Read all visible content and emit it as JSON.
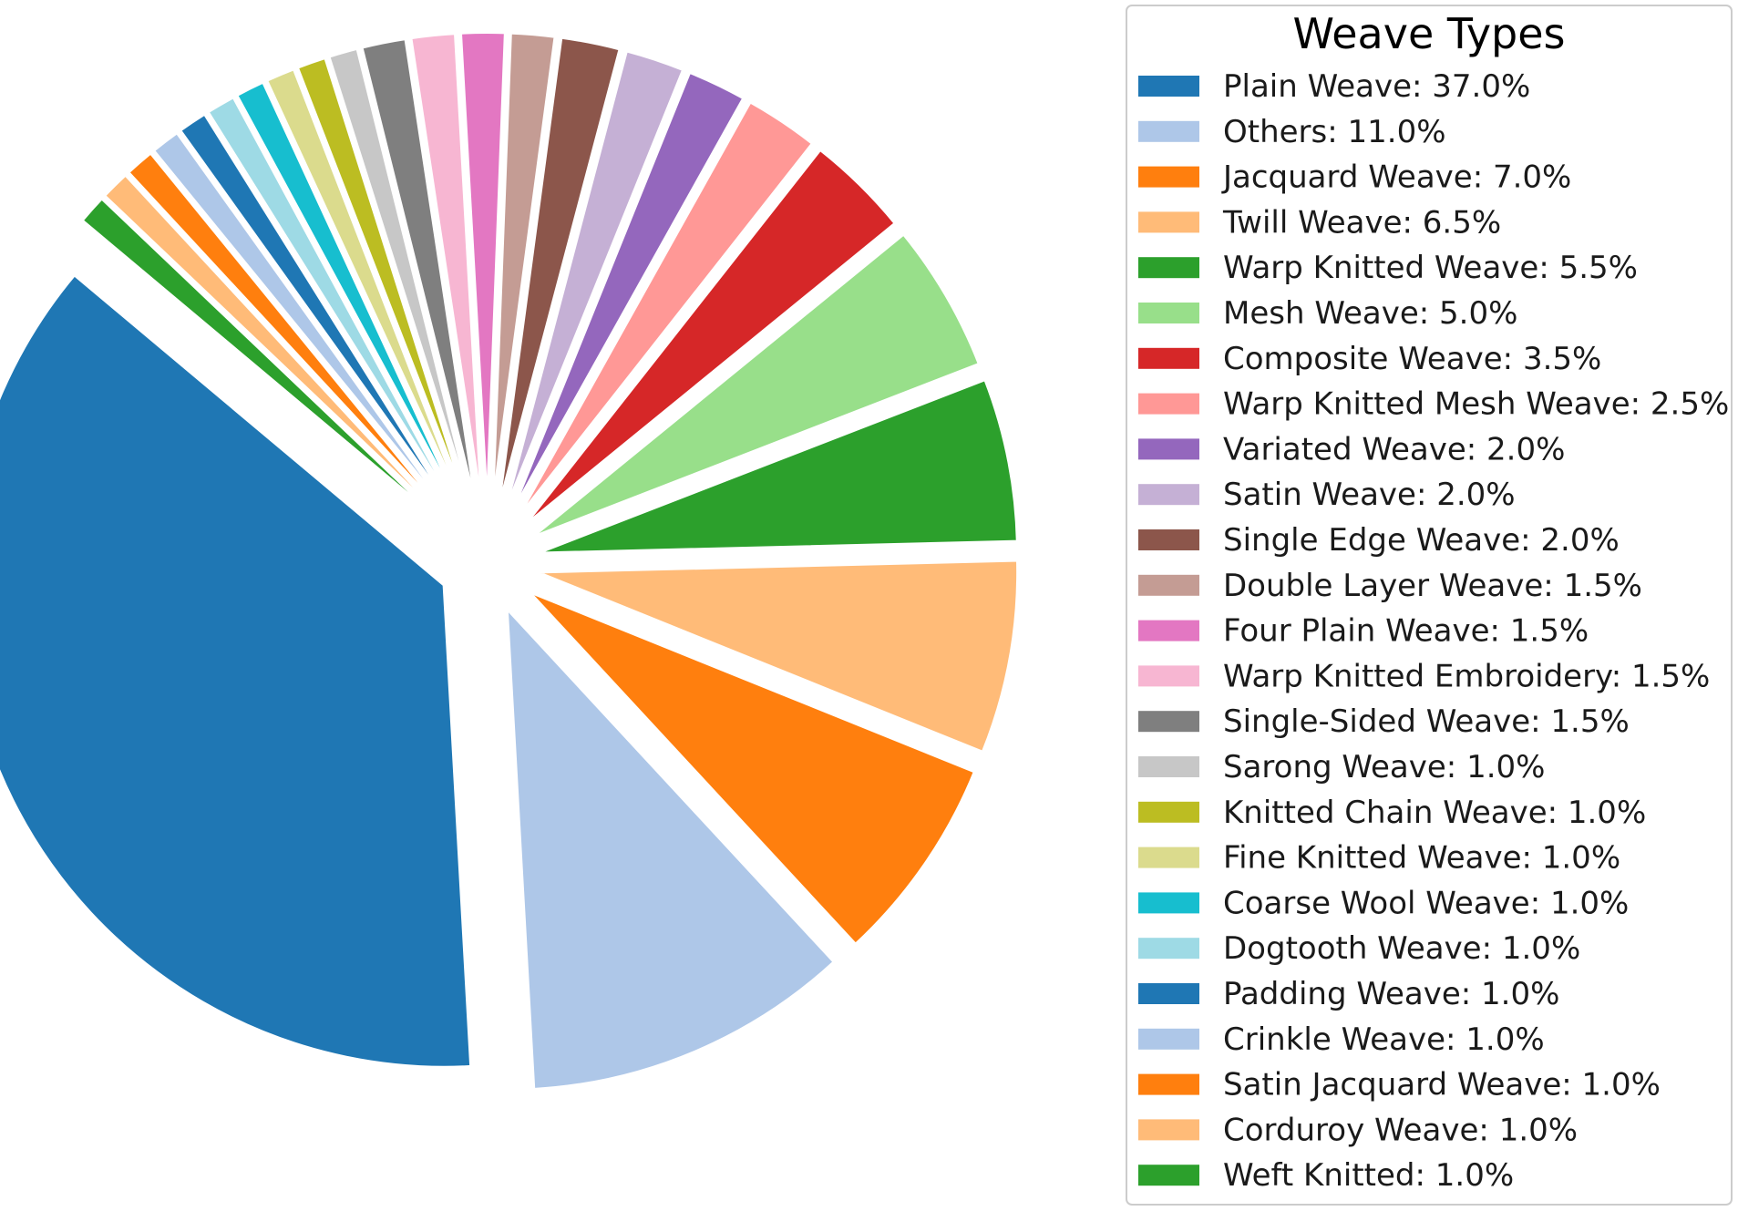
{
  "chart_data": {
    "type": "pie",
    "legend_title": "Weave Types",
    "legend_position": "right",
    "start_angle_deg": 140,
    "direction": "counterclockwise",
    "slices": [
      {
        "label": "Plain Weave: 37.0%",
        "value": 37.0,
        "color": "#1f77b4",
        "explode": 0.1
      },
      {
        "label": "Others: 11.0%",
        "value": 11.0,
        "color": "#aec7e8",
        "explode": 0.1
      },
      {
        "label": "Jacquard Weave: 7.0%",
        "value": 7.0,
        "color": "#ff7f0e",
        "explode": 0.1
      },
      {
        "label": "Twill Weave: 6.5%",
        "value": 6.5,
        "color": "#ffbb78",
        "explode": 0.1
      },
      {
        "label": "Warp Knitted Weave: 5.5%",
        "value": 5.5,
        "color": "#2ca02c",
        "explode": 0.1
      },
      {
        "label": "Mesh Weave: 5.0%",
        "value": 5.0,
        "color": "#98df8a",
        "explode": 0.1
      },
      {
        "label": "Composite Weave: 3.5%",
        "value": 3.5,
        "color": "#d62728",
        "explode": 0.1
      },
      {
        "label": "Warp Knitted Mesh Weave: 2.5%",
        "value": 2.5,
        "color": "#ff9896",
        "explode": 0.1
      },
      {
        "label": "Variated Weave: 2.0%",
        "value": 2.0,
        "color": "#9467bd",
        "explode": 0.1
      },
      {
        "label": "Satin Weave: 2.0%",
        "value": 2.0,
        "color": "#c5b0d5",
        "explode": 0.1
      },
      {
        "label": "Single Edge Weave: 2.0%",
        "value": 2.0,
        "color": "#8c564b",
        "explode": 0.1
      },
      {
        "label": "Double Layer Weave: 1.5%",
        "value": 1.5,
        "color": "#c49c94",
        "explode": 0.1
      },
      {
        "label": "Four Plain Weave: 1.5%",
        "value": 1.5,
        "color": "#e377c2",
        "explode": 0.1
      },
      {
        "label": "Warp Knitted Embroidery: 1.5%",
        "value": 1.5,
        "color": "#f7b6d2",
        "explode": 0.1
      },
      {
        "label": "Single-Sided Weave: 1.5%",
        "value": 1.5,
        "color": "#7f7f7f",
        "explode": 0.1
      },
      {
        "label": "Sarong Weave: 1.0%",
        "value": 1.0,
        "color": "#c7c7c7",
        "explode": 0.1
      },
      {
        "label": "Knitted Chain Weave: 1.0%",
        "value": 1.0,
        "color": "#bcbd22",
        "explode": 0.1
      },
      {
        "label": "Fine Knitted Weave: 1.0%",
        "value": 1.0,
        "color": "#dbdb8d",
        "explode": 0.1
      },
      {
        "label": "Coarse Wool Weave: 1.0%",
        "value": 1.0,
        "color": "#17becf",
        "explode": 0.1
      },
      {
        "label": "Dogtooth Weave: 1.0%",
        "value": 1.0,
        "color": "#9edae5",
        "explode": 0.1
      },
      {
        "label": "Padding Weave: 1.0%",
        "value": 1.0,
        "color": "#1f77b4",
        "explode": 0.1
      },
      {
        "label": "Crinkle Weave: 1.0%",
        "value": 1.0,
        "color": "#aec7e8",
        "explode": 0.1
      },
      {
        "label": "Satin Jacquard Weave: 1.0%",
        "value": 1.0,
        "color": "#ff7f0e",
        "explode": 0.1
      },
      {
        "label": "Corduroy Weave: 1.0%",
        "value": 1.0,
        "color": "#ffbb78",
        "explode": 0.1
      },
      {
        "label": "Weft Knitted: 1.0%",
        "value": 1.0,
        "color": "#2ca02c",
        "explode": 0.1
      }
    ]
  }
}
